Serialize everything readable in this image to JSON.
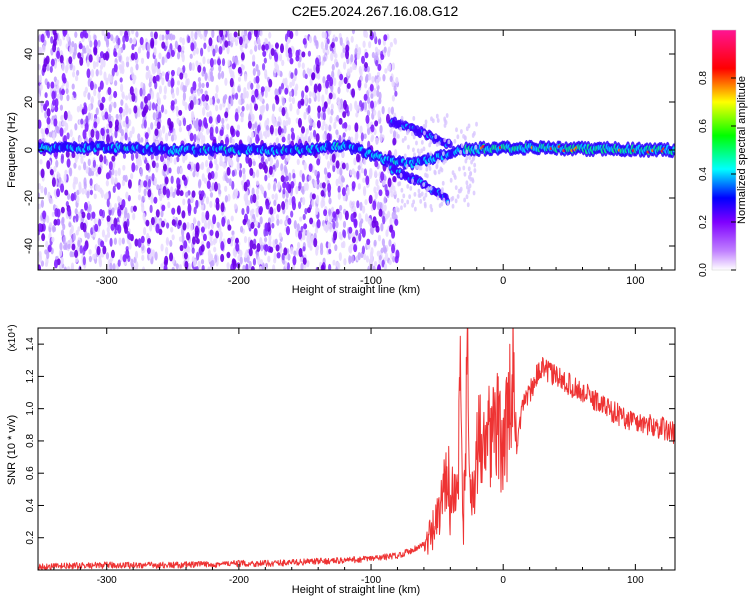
{
  "title": "C2E5.2024.267.16.08.G12",
  "chart_data": [
    {
      "type": "heatmap",
      "xlabel": "Height of straight line (km)",
      "ylabel": "Frequency (Hz)",
      "xlim": [
        -352,
        130
      ],
      "ylim": [
        -50,
        50
      ],
      "xticks": [
        -300,
        -200,
        -100,
        0,
        100
      ],
      "yticks": [
        -40,
        -20,
        0,
        20,
        40
      ],
      "colorbar": {
        "label": "Normalized spectral amplitude",
        "range": [
          0,
          1
        ],
        "ticks": [
          0.0,
          0.2,
          0.4,
          0.6,
          0.8
        ],
        "colormap": [
          "#ffffff",
          "#7f00ff",
          "#0000ff",
          "#00ffff",
          "#00ff00",
          "#ffff00",
          "#ff0000",
          "#ff1493"
        ]
      },
      "features": {
        "noise_region_x": [
          -352,
          -80
        ],
        "main_ridge": [
          {
            "x": -300,
            "f": 1
          },
          {
            "x": -250,
            "f": 0
          },
          {
            "x": -200,
            "f": 0
          },
          {
            "x": -150,
            "f": 0
          },
          {
            "x": -120,
            "f": 2
          },
          {
            "x": -90,
            "f": -4
          },
          {
            "x": -70,
            "f": -6
          },
          {
            "x": -50,
            "f": -3
          },
          {
            "x": -30,
            "f": 0
          },
          {
            "x": 0,
            "f": 1
          },
          {
            "x": 130,
            "f": 0
          }
        ],
        "upper_branch": [
          {
            "x": -85,
            "f": 12
          },
          {
            "x": -60,
            "f": 7
          },
          {
            "x": -40,
            "f": 2
          }
        ],
        "lower_branch": [
          {
            "x": -85,
            "f": -8
          },
          {
            "x": -60,
            "f": -14
          },
          {
            "x": -42,
            "f": -21
          }
        ]
      }
    },
    {
      "type": "line",
      "xlabel": "Height of straight line (km)",
      "ylabel": "SNR (10 * v/v)",
      "y_multiplier": "(x10⁴)",
      "xlim": [
        -352,
        130
      ],
      "ylim": [
        0,
        1.5
      ],
      "xticks": [
        -300,
        -200,
        -100,
        0,
        100
      ],
      "yticks": [
        0.2,
        0.4,
        0.6,
        0.8,
        1.0,
        1.2,
        1.4
      ],
      "color": "#ee3333",
      "series": [
        {
          "x": [
            -352,
            -300,
            -250,
            -200,
            -180,
            -150,
            -120,
            -100,
            -80,
            -70,
            -60,
            -55,
            -50,
            -45,
            -42,
            -40,
            -38,
            -35,
            -32,
            -30,
            -27,
            -25,
            -20,
            -15,
            -10,
            -5,
            0,
            5,
            8,
            10,
            15,
            20,
            25,
            30,
            40,
            50,
            60,
            70,
            80,
            90,
            100,
            110,
            120,
            130
          ],
          "y": [
            0.02,
            0.03,
            0.03,
            0.04,
            0.04,
            0.05,
            0.06,
            0.07,
            0.09,
            0.12,
            0.16,
            0.2,
            0.3,
            0.45,
            0.75,
            0.35,
            0.6,
            0.4,
            1.15,
            0.3,
            1.4,
            0.4,
            0.7,
            0.95,
            0.85,
            0.9,
            0.75,
            1.0,
            1.3,
            0.7,
            1.05,
            1.1,
            1.2,
            1.25,
            1.2,
            1.15,
            1.1,
            1.05,
            1.0,
            0.95,
            0.92,
            0.9,
            0.88,
            0.85
          ]
        }
      ]
    }
  ]
}
